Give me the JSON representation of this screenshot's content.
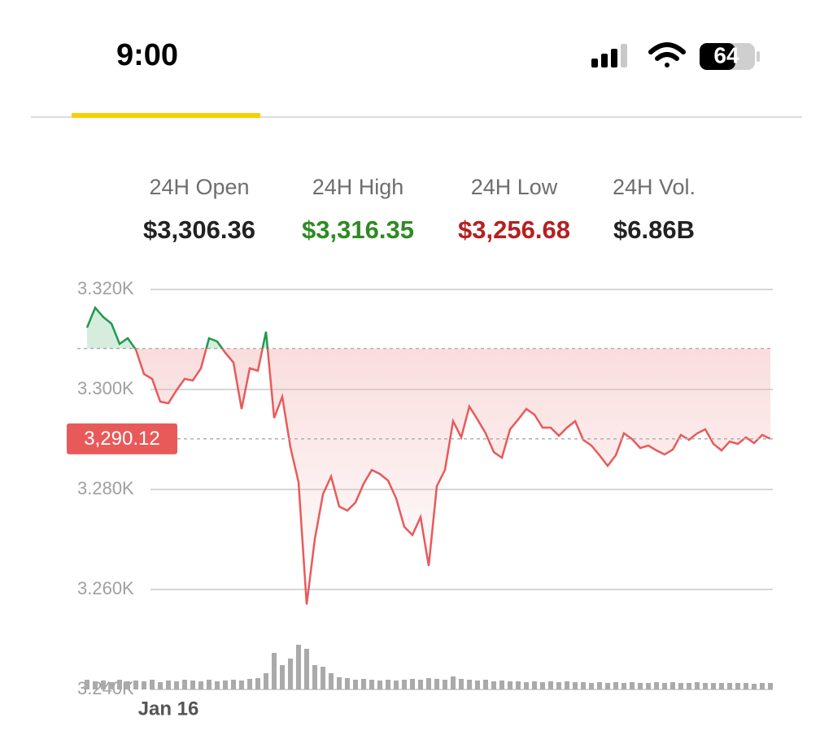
{
  "status_bar": {
    "time": "9:00",
    "battery": 64
  },
  "stats": [
    {
      "label": "24H Open",
      "value": "$3,306.36",
      "color": "#222222"
    },
    {
      "label": "24H High",
      "value": "$3,316.35",
      "color": "#2e8b22"
    },
    {
      "label": "24H Low",
      "value": "$3,256.68",
      "color": "#b52020"
    },
    {
      "label": "24H Vol.",
      "value": "$6.86B",
      "color": "#222222"
    }
  ],
  "chart_data": {
    "type": "line",
    "categories": [
      null,
      null,
      null,
      null,
      null,
      null,
      null,
      null,
      null,
      null,
      "Jan 16",
      null,
      null,
      null,
      null,
      null,
      null,
      null,
      null,
      null,
      null,
      null,
      null,
      null,
      null,
      null,
      null,
      null,
      null,
      null,
      null,
      null,
      null,
      null,
      null,
      null,
      null,
      null,
      null,
      null,
      null,
      null,
      null,
      null,
      null,
      null,
      null,
      null,
      null,
      null,
      null,
      null,
      null,
      null,
      null,
      null,
      null,
      null,
      null,
      null,
      null,
      null,
      null,
      null,
      null,
      null,
      null,
      null,
      null,
      null,
      null,
      null,
      null,
      null,
      null,
      null,
      null,
      null,
      null,
      null,
      null,
      null,
      null,
      null,
      null
    ],
    "series": [
      {
        "name": "price",
        "color": "#e85a5a",
        "up_color": "#1e9a4a",
        "values": [
          3312.36,
          3316.35,
          3314.47,
          3313.17,
          3309.11,
          3310.24,
          3307.97,
          3303.09,
          3302.11,
          3297.56,
          3297.24,
          3299.84,
          3302.11,
          3301.79,
          3304.23,
          3310.24,
          3309.59,
          3307.32,
          3305.37,
          3296.1,
          3304.23,
          3303.74,
          3311.54,
          3294.31,
          3298.54,
          3288.46,
          3281.46,
          3257.0,
          3270.08,
          3279.02,
          3282.6,
          3276.59,
          3275.77,
          3277.4,
          3281.14,
          3283.9,
          3283.09,
          3281.79,
          3278.21,
          3272.52,
          3270.89,
          3274.47,
          3264.72,
          3280.65,
          3283.9,
          3293.66,
          3290.41,
          3296.59,
          3293.98,
          3291.22,
          3287.48,
          3286.34,
          3292.03,
          3293.98,
          3296.1,
          3294.96,
          3292.36,
          3292.36,
          3290.73,
          3292.36,
          3293.66,
          3289.92,
          3288.78,
          3286.83,
          3284.72,
          3286.83,
          3291.22,
          3290.08,
          3288.29,
          3288.78,
          3287.8,
          3286.99,
          3287.97,
          3290.89,
          3289.92,
          3291.22,
          3292.03,
          3289.11,
          3287.8,
          3289.59,
          3289.11,
          3290.41,
          3289.27,
          3290.89,
          3290.12
        ]
      },
      {
        "name": "volume",
        "color": "#aaaaaa",
        "values": [
          12,
          10,
          11,
          9,
          12,
          10,
          11,
          10,
          12,
          9,
          11,
          10,
          12,
          11,
          10,
          12,
          10,
          11,
          12,
          11,
          13,
          14,
          20,
          45,
          30,
          38,
          55,
          50,
          30,
          28,
          20,
          15,
          14,
          12,
          13,
          12,
          11,
          12,
          11,
          12,
          13,
          12,
          14,
          13,
          12,
          16,
          13,
          12,
          11,
          12,
          10,
          11,
          10,
          10,
          9,
          10,
          9,
          10,
          9,
          10,
          9,
          9,
          8,
          9,
          8,
          9,
          8,
          9,
          8,
          8,
          9,
          8,
          9,
          8,
          8,
          9,
          8,
          8,
          8,
          8,
          8,
          8,
          7,
          8,
          8
        ]
      }
    ],
    "ylim": [
      3240,
      3322
    ],
    "yticks": [
      {
        "value": 3240,
        "label": "3.240K"
      },
      {
        "value": 3260,
        "label": "3.260K"
      },
      {
        "value": 3280,
        "label": "3.280K"
      },
      {
        "value": 3300,
        "label": "3.300K"
      },
      {
        "value": 3320,
        "label": "3.320K"
      }
    ],
    "volume_lim": [
      0,
      100
    ],
    "baseline": 3308.2,
    "last_price": {
      "value": 3290.12,
      "label": "3,290.12",
      "color": "#e85a5a"
    },
    "grid": true
  }
}
